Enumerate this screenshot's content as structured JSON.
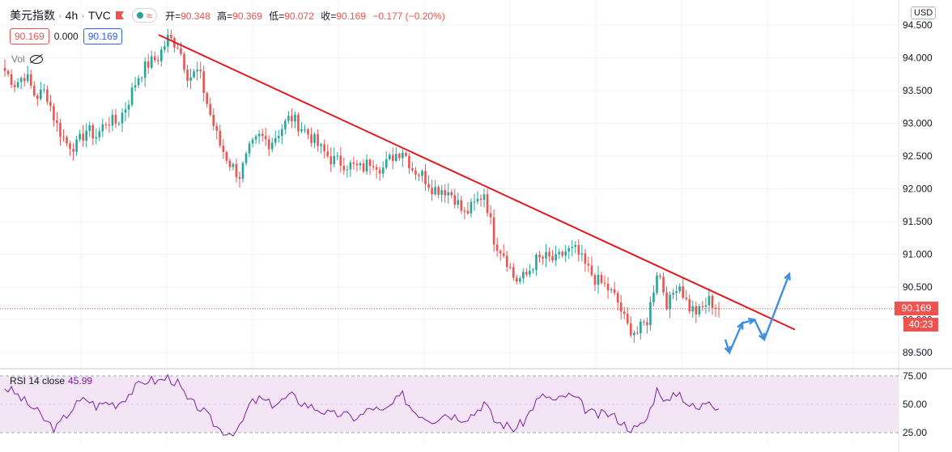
{
  "header": {
    "symbol": "美元指数",
    "interval": "4h",
    "exchange": "TVC",
    "separator": "·",
    "ohlc": {
      "open_label": "开=",
      "open": "90.348",
      "high_label": "高=",
      "high": "90.369",
      "low_label": "低=",
      "low": "90.072",
      "close_label": "收=",
      "close": "90.169",
      "change": "−0.177 (−0.20%)"
    },
    "bid": "90.169",
    "spread": "0.000",
    "ask": "90.169",
    "vol_label": "Vol",
    "wave_symbol": "≈"
  },
  "currency": "USD",
  "price_tag": "90.169",
  "time_tag": "40:23",
  "rsi_label": "RSI 14 close",
  "rsi_value": "45.99",
  "colors": {
    "up": "#26a69a",
    "down": "#ef5350",
    "trendline": "#e0191f",
    "projection": "#3d8fe0",
    "rsi_line": "#7b1fa2",
    "rsi_band": "#f3e5f5"
  },
  "chart_data": [
    {
      "type": "candlestick",
      "title": "美元指数 · 4h · TVC",
      "ylim": [
        89.2,
        94.6
      ],
      "y_ticks": [
        "94.500",
        "94.000",
        "93.500",
        "93.000",
        "92.500",
        "92.000",
        "91.500",
        "91.000",
        "90.500",
        "90.000",
        "89.500"
      ],
      "close_path": [
        93.8,
        93.6,
        93.75,
        93.4,
        93.5,
        93.0,
        92.7,
        92.65,
        92.9,
        92.8,
        93.05,
        93.0,
        93.3,
        93.7,
        93.9,
        94.0,
        94.3,
        94.2,
        93.7,
        93.8,
        93.2,
        92.7,
        92.4,
        92.2,
        92.6,
        92.8,
        92.7,
        92.9,
        93.1,
        92.95,
        92.8,
        92.6,
        92.45,
        92.4,
        92.35,
        92.3,
        92.45,
        92.3,
        92.5,
        92.6,
        92.3,
        92.2,
        92.0,
        92.0,
        91.9,
        91.6,
        91.75,
        91.95,
        91.2,
        91.0,
        90.6,
        90.65,
        90.9,
        90.95,
        90.9,
        91.05,
        91.05,
        90.8,
        90.6,
        90.5,
        90.3,
        89.9,
        89.8,
        90.0,
        90.8,
        90.2,
        90.6,
        90.2,
        90.1,
        90.3,
        90.17
      ],
      "trendline": [
        {
          "x": 196,
          "price": 94.35
        },
        {
          "x": 982,
          "price": 89.85
        }
      ],
      "projection": [
        [
          896,
          89.7
        ],
        [
          901,
          89.5
        ],
        [
          917,
          89.95
        ],
        [
          932,
          90.0
        ],
        [
          944,
          89.7
        ],
        [
          975,
          90.7
        ]
      ],
      "last_price": 90.169
    },
    {
      "type": "line",
      "title": "RSI 14 close",
      "ylim": [
        20,
        80
      ],
      "y_ticks": [
        "75.00",
        "50.00",
        "25.00"
      ],
      "band": [
        30,
        70
      ],
      "values": [
        65,
        60,
        52,
        45,
        35,
        28,
        40,
        50,
        55,
        48,
        52,
        50,
        58,
        66,
        72,
        70,
        74,
        68,
        52,
        48,
        38,
        28,
        25,
        28,
        50,
        55,
        50,
        52,
        58,
        52,
        48,
        45,
        40,
        42,
        38,
        40,
        48,
        42,
        50,
        58,
        45,
        40,
        36,
        42,
        40,
        38,
        42,
        52,
        35,
        32,
        28,
        36,
        52,
        58,
        52,
        58,
        55,
        45,
        40,
        42,
        38,
        30,
        28,
        38,
        65,
        50,
        62,
        50,
        45,
        55,
        46
      ],
      "last_value": 45.99
    }
  ]
}
